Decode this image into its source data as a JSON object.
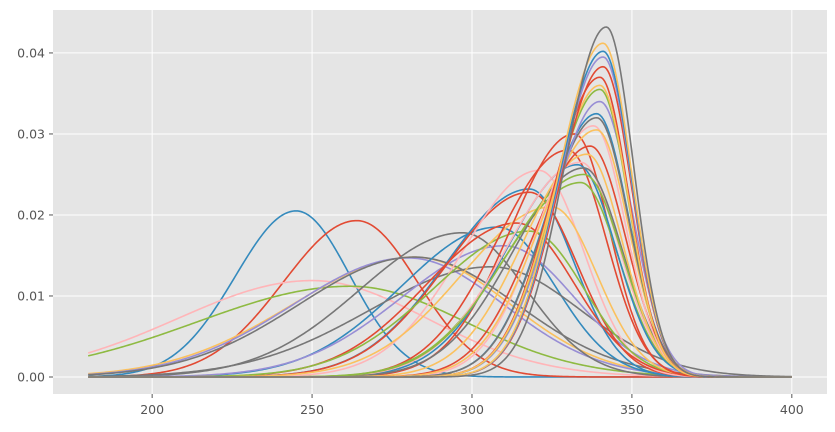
{
  "chart_data": {
    "type": "line",
    "style": "ggplot",
    "title": "",
    "xlabel": "",
    "ylabel": "",
    "xlim": [
      169,
      411
    ],
    "ylim": [
      -0.0021,
      0.0453
    ],
    "grid": true,
    "legend": "none",
    "x_ticks": [
      200,
      250,
      300,
      350,
      400
    ],
    "y_ticks": [
      0.0,
      0.01,
      0.02,
      0.03,
      0.04
    ],
    "x_tick_labels": [
      "200",
      "250",
      "300",
      "350",
      "400"
    ],
    "y_tick_labels": [
      "0.00",
      "0.01",
      "0.02",
      "0.03",
      "0.04"
    ],
    "x_range": [
      180,
      400
    ],
    "palette": [
      "#348ABD",
      "#E24A33",
      "#988ED5",
      "#777777",
      "#FBC15E",
      "#8EBA42",
      "#FFB5B8"
    ],
    "series": [
      {
        "color": "#348ABD",
        "peak_x": 245,
        "peak_y": 0.0205,
        "width_left": 19,
        "width_right": 17
      },
      {
        "color": "#E24A33",
        "peak_x": 264,
        "peak_y": 0.0193,
        "width_left": 23,
        "width_right": 19
      },
      {
        "color": "#FFB5B8",
        "peak_x": 250,
        "peak_y": 0.0119,
        "width_left": 42,
        "width_right": 36
      },
      {
        "color": "#8EBA42",
        "peak_x": 262,
        "peak_y": 0.0112,
        "width_left": 48,
        "width_right": 36
      },
      {
        "color": "#FBC15E",
        "peak_x": 282,
        "peak_y": 0.0148,
        "width_left": 38,
        "width_right": 30
      },
      {
        "color": "#988ED5",
        "peak_x": 280,
        "peak_y": 0.0147,
        "width_left": 36,
        "width_right": 30
      },
      {
        "color": "#777777",
        "peak_x": 282,
        "peak_y": 0.0148,
        "width_left": 36,
        "width_right": 32
      },
      {
        "color": "#777777",
        "peak_x": 297,
        "peak_y": 0.0178,
        "width_left": 32,
        "width_right": 20
      },
      {
        "color": "#348ABD",
        "peak_x": 308,
        "peak_y": 0.0185,
        "width_left": 30,
        "width_right": 18
      },
      {
        "color": "#777777",
        "peak_x": 306,
        "peak_y": 0.0136,
        "width_left": 38,
        "width_right": 28
      },
      {
        "color": "#988ED5",
        "peak_x": 310,
        "peak_y": 0.0162,
        "width_left": 32,
        "width_right": 22
      },
      {
        "color": "#348ABD",
        "peak_x": 318,
        "peak_y": 0.0232,
        "width_left": 26,
        "width_right": 14
      },
      {
        "color": "#E24A33",
        "peak_x": 318,
        "peak_y": 0.0228,
        "width_left": 26,
        "width_right": 15
      },
      {
        "color": "#FFB5B8",
        "peak_x": 321,
        "peak_y": 0.0255,
        "width_left": 24,
        "width_right": 14
      },
      {
        "color": "#E24A33",
        "peak_x": 314,
        "peak_y": 0.019,
        "width_left": 28,
        "width_right": 18
      },
      {
        "color": "#8EBA42",
        "peak_x": 318,
        "peak_y": 0.018,
        "width_left": 30,
        "width_right": 17
      },
      {
        "color": "#FBC15E",
        "peak_x": 325,
        "peak_y": 0.021,
        "width_left": 28,
        "width_right": 14
      },
      {
        "color": "#E24A33",
        "peak_x": 330,
        "peak_y": 0.028,
        "width_left": 22,
        "width_right": 12
      },
      {
        "color": "#E24A33",
        "peak_x": 332,
        "peak_y": 0.03,
        "width_left": 20,
        "width_right": 11
      },
      {
        "color": "#8EBA42",
        "peak_x": 334,
        "peak_y": 0.024,
        "width_left": 24,
        "width_right": 12
      },
      {
        "color": "#348ABD",
        "peak_x": 333,
        "peak_y": 0.0262,
        "width_left": 22,
        "width_right": 12
      },
      {
        "color": "#FFB5B8",
        "peak_x": 334,
        "peak_y": 0.0265,
        "width_left": 23,
        "width_right": 12
      },
      {
        "color": "#777777",
        "peak_x": 335,
        "peak_y": 0.0258,
        "width_left": 22,
        "width_right": 12
      },
      {
        "color": "#8EBA42",
        "peak_x": 335,
        "peak_y": 0.025,
        "width_left": 24,
        "width_right": 12
      },
      {
        "color": "#FBC15E",
        "peak_x": 336,
        "peak_y": 0.0275,
        "width_left": 20,
        "width_right": 11
      },
      {
        "color": "#E24A33",
        "peak_x": 337,
        "peak_y": 0.0285,
        "width_left": 18,
        "width_right": 11
      },
      {
        "color": "#FFB5B8",
        "peak_x": 338,
        "peak_y": 0.031,
        "width_left": 17,
        "width_right": 10
      },
      {
        "color": "#FBC15E",
        "peak_x": 339,
        "peak_y": 0.0305,
        "width_left": 18,
        "width_right": 10
      },
      {
        "color": "#348ABD",
        "peak_x": 339,
        "peak_y": 0.0325,
        "width_left": 16,
        "width_right": 10
      },
      {
        "color": "#777777",
        "peak_x": 339,
        "peak_y": 0.032,
        "width_left": 16,
        "width_right": 10
      },
      {
        "color": "#988ED5",
        "peak_x": 340,
        "peak_y": 0.034,
        "width_left": 15,
        "width_right": 10
      },
      {
        "color": "#8EBA42",
        "peak_x": 340,
        "peak_y": 0.0355,
        "width_left": 15,
        "width_right": 9
      },
      {
        "color": "#E24A33",
        "peak_x": 340,
        "peak_y": 0.037,
        "width_left": 15,
        "width_right": 9
      },
      {
        "color": "#FBC15E",
        "peak_x": 340,
        "peak_y": 0.036,
        "width_left": 15,
        "width_right": 9
      },
      {
        "color": "#E24A33",
        "peak_x": 341,
        "peak_y": 0.0383,
        "width_left": 14,
        "width_right": 9
      },
      {
        "color": "#988ED5",
        "peak_x": 341,
        "peak_y": 0.0395,
        "width_left": 14,
        "width_right": 9
      },
      {
        "color": "#348ABD",
        "peak_x": 341,
        "peak_y": 0.0402,
        "width_left": 14,
        "width_right": 9
      },
      {
        "color": "#FBC15E",
        "peak_x": 341,
        "peak_y": 0.0412,
        "width_left": 14,
        "width_right": 9
      },
      {
        "color": "#777777",
        "peak_x": 342,
        "peak_y": 0.0432,
        "width_left": 13,
        "width_right": 8.5
      }
    ]
  }
}
